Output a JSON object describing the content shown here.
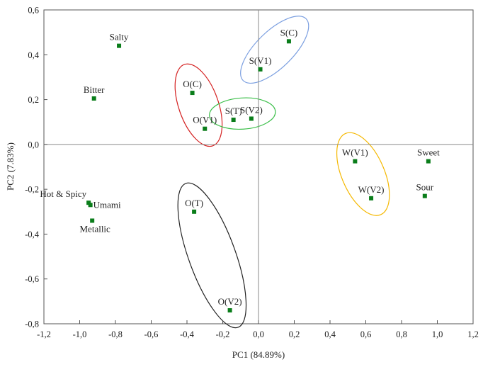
{
  "chart_data": {
    "type": "scatter",
    "title": "",
    "xlabel": "PC1 (84.89%)",
    "ylabel": "PC2 (7.83%)",
    "xlim": [
      -1.2,
      1.2
    ],
    "ylim": [
      -0.8,
      0.6
    ],
    "xticks": [
      -1.2,
      -1.0,
      -0.8,
      -0.6,
      -0.4,
      -0.2,
      0.0,
      0.2,
      0.4,
      0.6,
      0.8,
      1.0,
      1.2
    ],
    "yticks": [
      -0.8,
      -0.6,
      -0.4,
      -0.2,
      0.0,
      0.2,
      0.4,
      0.6
    ],
    "xtick_labels": [
      "-1,2",
      "-1,0",
      "-0,8",
      "-0,6",
      "-0,4",
      "-0,2",
      "0,0",
      "0,2",
      "0,4",
      "0,6",
      "0,8",
      "1,0",
      "1,2"
    ],
    "ytick_labels": [
      "-0,8",
      "-0,6",
      "-0,4",
      "-0,2",
      "0,0",
      "0,2",
      "0,4",
      "0,6"
    ],
    "marker_color": "#0a7d1a",
    "grid": false,
    "reference_lines": {
      "x": 0.0,
      "y": 0.0
    },
    "points": [
      {
        "label": "Salty",
        "x": -0.78,
        "y": 0.44
      },
      {
        "label": "Bitter",
        "x": -0.92,
        "y": 0.205
      },
      {
        "label": "Hot & Spicy",
        "x": -0.95,
        "y": -0.26
      },
      {
        "label": "Umami",
        "x": -0.94,
        "y": -0.27
      },
      {
        "label": "Metallic",
        "x": -0.93,
        "y": -0.34
      },
      {
        "label": "S(C)",
        "x": 0.17,
        "y": 0.46
      },
      {
        "label": "S(V1)",
        "x": 0.01,
        "y": 0.335
      },
      {
        "label": "O(C)",
        "x": -0.37,
        "y": 0.23
      },
      {
        "label": "O(V1)",
        "x": -0.3,
        "y": 0.07
      },
      {
        "label": "S(T)",
        "x": -0.14,
        "y": 0.11
      },
      {
        "label": "S(V2)",
        "x": -0.04,
        "y": 0.115
      },
      {
        "label": "W(V1)",
        "x": 0.54,
        "y": -0.075
      },
      {
        "label": "W(V2)",
        "x": 0.63,
        "y": -0.24
      },
      {
        "label": "Sweet",
        "x": 0.95,
        "y": -0.075
      },
      {
        "label": "Sour",
        "x": 0.93,
        "y": -0.23
      },
      {
        "label": "O(T)",
        "x": -0.36,
        "y": -0.3
      },
      {
        "label": "O(V2)",
        "x": -0.16,
        "y": -0.74
      }
    ],
    "groups": [
      {
        "name": "S(C)/S(V1) cluster",
        "color": "#7b9fe0",
        "members": [
          "S(C)",
          "S(V1)"
        ]
      },
      {
        "name": "O(C)/O(V1) cluster",
        "color": "#d42020",
        "members": [
          "O(C)",
          "O(V1)"
        ]
      },
      {
        "name": "S(T)/S(V2) cluster",
        "color": "#3cbf4a",
        "members": [
          "S(T)",
          "S(V2)"
        ]
      },
      {
        "name": "W(V1)/W(V2) cluster",
        "color": "#f5b800",
        "members": [
          "W(V1)",
          "W(V2)"
        ]
      },
      {
        "name": "O(T)/O(V2) cluster",
        "color": "#222222",
        "members": [
          "O(T)",
          "O(V2)"
        ]
      }
    ]
  }
}
